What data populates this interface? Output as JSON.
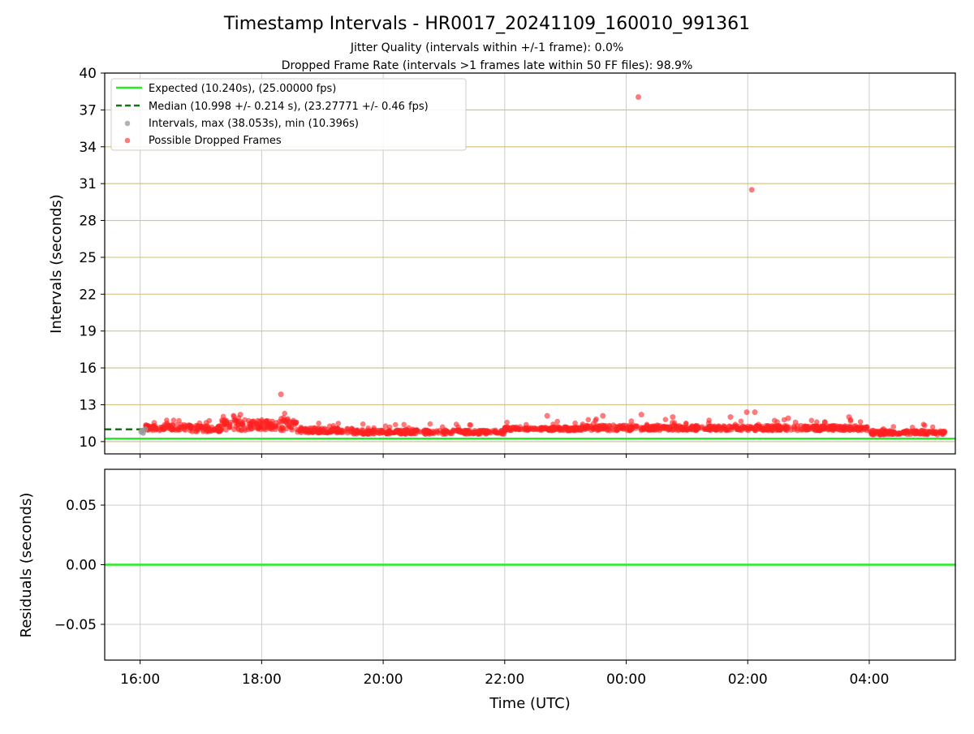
{
  "title": "Timestamp Intervals - HR0017_20241109_160010_991361",
  "subtitle_lines": [
    "Jitter Quality (intervals within +/-1 frame): 0.0%",
    "Dropped Frame Rate (intervals >1 frames late within 50 FF files): 98.9%"
  ],
  "colors": {
    "expected": "#22ee22",
    "median": "#117711",
    "intervals": "#999999",
    "dropped": "#ff2222",
    "hgrid_top": "#d4c48a",
    "grid": "#cccccc"
  },
  "chart_data": [
    {
      "type": "scatter",
      "panel": "intervals",
      "ylabel": "Intervals (seconds)",
      "xlabel": "",
      "x_range": [
        "15:25",
        "05:25"
      ],
      "ylim": [
        9.0,
        40.0
      ],
      "yticks": [
        "10",
        "13",
        "16",
        "19",
        "22",
        "25",
        "28",
        "31",
        "34",
        "37",
        "40"
      ],
      "xticks": [
        "16:00",
        "18:00",
        "20:00",
        "22:00",
        "00:00",
        "02:00",
        "04:00"
      ],
      "grid": true,
      "legend_position": "top-left",
      "legend": [
        "Expected (10.240s), (25.00000 fps)",
        "Median (10.998 +/- 0.214 s), (23.27771 +/- 0.46 fps)",
        "Intervals, max (38.053s), min (10.396s)",
        "Possible Dropped Frames"
      ],
      "expected_interval": 10.24,
      "median_interval": 10.998,
      "median_std": 0.214,
      "time_span": [
        "16:00",
        "05:15"
      ],
      "series": [
        {
          "name": "Intervals",
          "points": [
            {
              "time": "16:01",
              "value": 10.8
            },
            {
              "time": "16:02",
              "value": 10.9
            },
            {
              "time": "16:03",
              "value": 10.7
            },
            {
              "time": "16:05",
              "value": 11.0
            }
          ]
        },
        {
          "name": "Possible Dropped Frames",
          "outliers": [
            {
              "time": "00:12",
              "value": 38.05
            },
            {
              "time": "02:04",
              "value": 30.5
            },
            {
              "time": "18:19",
              "value": 13.85
            },
            {
              "time": "01:59",
              "value": 12.4
            },
            {
              "time": "02:07",
              "value": 12.4
            },
            {
              "time": "00:15",
              "value": 12.2
            },
            {
              "time": "23:37",
              "value": 12.1
            },
            {
              "time": "17:39",
              "value": 12.2
            },
            {
              "time": "22:42",
              "value": 12.1
            },
            {
              "time": "01:43",
              "value": 12.0
            },
            {
              "time": "00:46",
              "value": 12.0
            },
            {
              "time": "02:40",
              "value": 11.9
            },
            {
              "time": "03:40",
              "value": 12.0
            }
          ]
        }
      ]
    },
    {
      "type": "line",
      "panel": "residuals",
      "ylabel": "Residuals (seconds)",
      "xlabel": "Time (UTC)",
      "ylim": [
        -0.08,
        0.08
      ],
      "yticks": [
        "0.05",
        "0.00",
        "−0.05"
      ],
      "xticks": [
        "16:00",
        "18:00",
        "20:00",
        "22:00",
        "00:00",
        "02:00",
        "04:00"
      ],
      "grid": true,
      "series": [
        {
          "name": "",
          "values": [
            0.0,
            0.0
          ]
        }
      ]
    }
  ]
}
